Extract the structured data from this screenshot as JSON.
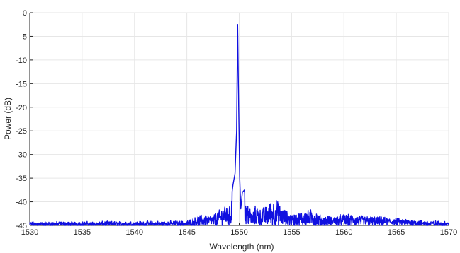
{
  "chart_data": {
    "type": "line",
    "xlabel": "Wavelength (nm)",
    "ylabel": "Power (dB)",
    "xlim": [
      1530,
      1570
    ],
    "ylim": [
      -45,
      0
    ],
    "grid": true,
    "xticks": [
      1530,
      1535,
      1540,
      1545,
      1550,
      1555,
      1560,
      1565,
      1570
    ],
    "yticks": [
      0,
      -5,
      -10,
      -15,
      -20,
      -25,
      -30,
      -35,
      -40,
      -45
    ],
    "series": [
      {
        "color": "#1010e0",
        "noise_floor_db": -45,
        "noise_peaks_db": -42.5,
        "x": [
          1530.0,
          1545.0,
          1546.5,
          1547.5,
          1548.2,
          1548.7,
          1549.0,
          1549.2,
          1549.4,
          1549.6,
          1549.75,
          1549.85,
          1549.95,
          1550.05,
          1550.15,
          1550.3,
          1550.5,
          1550.7,
          1550.9,
          1551.2,
          1551.6,
          1552.0,
          1552.5,
          1553.0,
          1553.5,
          1554.0,
          1555.0,
          1557.0,
          1558.0,
          1560.0,
          1570.0
        ],
        "y": [
          -44.5,
          -44.3,
          -43.0,
          -43.2,
          -42.0,
          -41.0,
          -42.5,
          -40.0,
          -36.5,
          -34.0,
          -25.0,
          -2.5,
          -20.0,
          -35.0,
          -41.5,
          -38.0,
          -37.5,
          -41.5,
          -40.5,
          -43.0,
          -41.0,
          -42.0,
          -41.5,
          -40.5,
          -40.0,
          -41.5,
          -43.0,
          -42.0,
          -43.5,
          -43.0,
          -44.5
        ]
      }
    ]
  }
}
